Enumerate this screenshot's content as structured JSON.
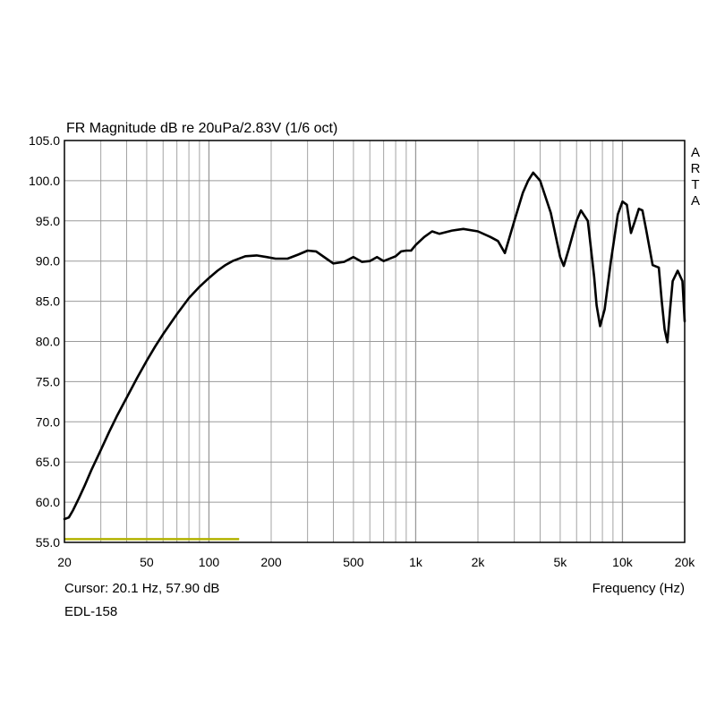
{
  "chart_data": {
    "type": "line",
    "title": "FR Magnitude dB re 20uPa/2.83V (1/6 oct)",
    "watermark": [
      "A",
      "R",
      "T",
      "A"
    ],
    "xlabel": "Frequency (Hz)",
    "ylabel": "",
    "xscale": "log",
    "xlim": [
      20,
      20000
    ],
    "ylim": [
      55,
      105
    ],
    "grid": true,
    "y_ticks": [
      105,
      100,
      95,
      90,
      85,
      80,
      75,
      70,
      65,
      60,
      55
    ],
    "y_tick_labels": [
      "105.0",
      "100.0",
      "95.0",
      "90.0",
      "85.0",
      "80.0",
      "75.0",
      "70.0",
      "65.0",
      "60.0",
      "55.0"
    ],
    "x_ticks": [
      20,
      50,
      100,
      200,
      500,
      1000,
      2000,
      5000,
      10000,
      20000
    ],
    "x_tick_labels": [
      "20",
      "50",
      "100",
      "200",
      "500",
      "1k",
      "2k",
      "5k",
      "10k",
      "20k"
    ],
    "cursor_text": "Cursor: 20.1 Hz, 57.90 dB",
    "footer_label": "EDL-158",
    "colors": {
      "curve": "#000000",
      "grid": "#9a9a9a",
      "frame": "#000000",
      "marker": "#b3b300"
    },
    "marker_line": {
      "x": [
        20,
        140
      ],
      "y": 55.4
    },
    "series": [
      {
        "x": [
          20,
          21,
          22,
          23.5,
          25,
          27,
          30,
          33,
          36,
          40,
          45,
          50,
          55,
          60,
          70,
          80,
          90,
          100,
          110,
          120,
          130,
          150,
          170,
          190,
          210,
          240,
          270,
          300,
          330,
          370,
          400,
          450,
          500,
          550,
          600,
          650,
          700,
          800,
          850,
          900,
          950,
          1000,
          1100,
          1200,
          1300,
          1500,
          1700,
          2000,
          2300,
          2500,
          2700,
          3000,
          3300,
          3500,
          3700,
          4000,
          4500,
          5000,
          5200,
          5500,
          6000,
          6300,
          6800,
          7300,
          7500,
          7800,
          8200,
          8800,
          9500,
          10000,
          10500,
          11000,
          11500,
          12000,
          12500,
          13000,
          14000,
          15000,
          15500,
          16000,
          16500,
          17000,
          17500,
          18500,
          19500,
          20000
        ],
        "values": [
          57.9,
          58.1,
          59.0,
          60.5,
          62.0,
          64.0,
          66.5,
          68.8,
          70.8,
          73.0,
          75.5,
          77.6,
          79.4,
          80.9,
          83.4,
          85.4,
          86.8,
          87.9,
          88.8,
          89.5,
          90.0,
          90.6,
          90.7,
          90.5,
          90.3,
          90.3,
          90.8,
          91.3,
          91.2,
          90.3,
          89.7,
          89.9,
          90.5,
          89.9,
          90.0,
          90.5,
          90.0,
          90.6,
          91.2,
          91.3,
          91.3,
          92.0,
          93.0,
          93.7,
          93.4,
          93.8,
          94.0,
          93.7,
          93.0,
          92.5,
          91.0,
          95.0,
          98.5,
          100.0,
          101.0,
          100.0,
          96.0,
          90.5,
          89.4,
          91.5,
          95.0,
          96.3,
          95.0,
          88.0,
          84.5,
          81.9,
          84.0,
          90.0,
          95.8,
          97.4,
          97.0,
          93.5,
          95.0,
          96.5,
          96.3,
          94.0,
          89.5,
          89.2,
          85.0,
          81.5,
          79.9,
          84.0,
          87.5,
          88.8,
          87.5,
          82.5
        ]
      }
    ]
  }
}
